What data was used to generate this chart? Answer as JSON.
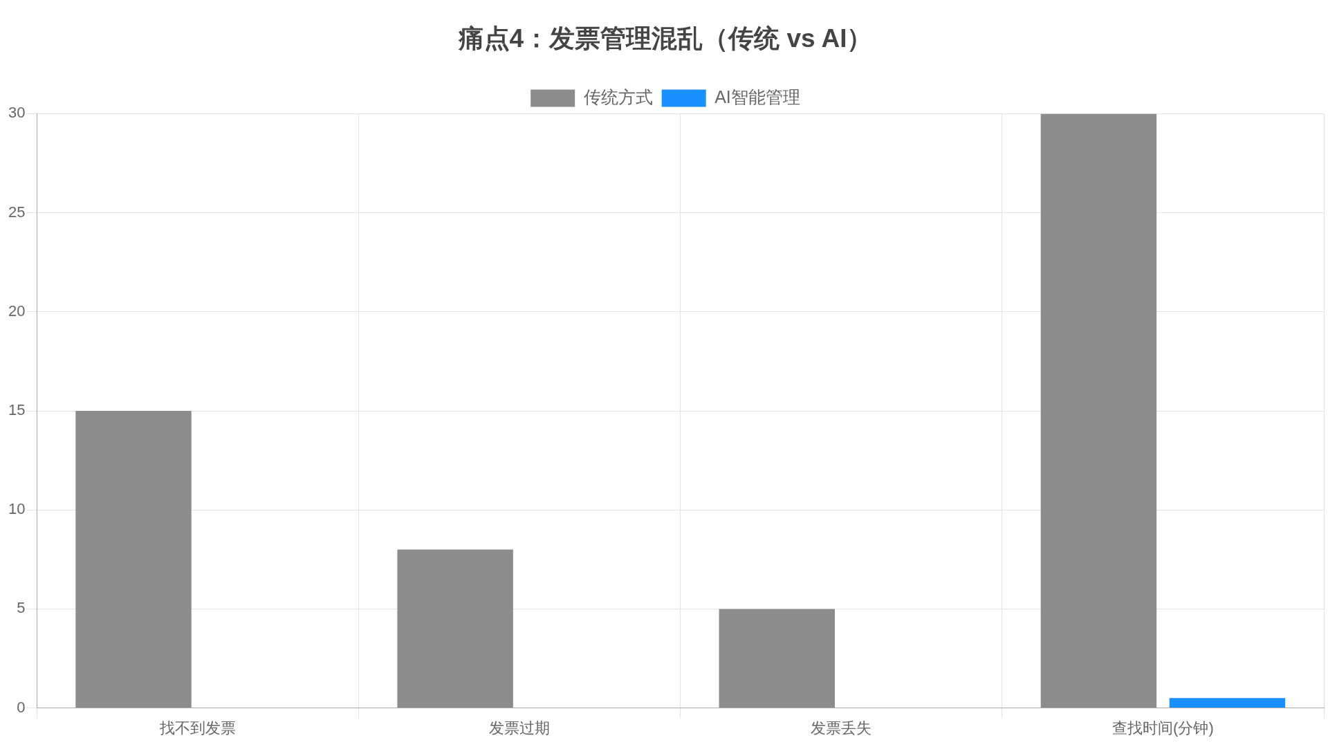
{
  "chart_data": {
    "type": "bar",
    "title": "痛点4：发票管理混乱（传统 vs AI）",
    "categories": [
      "找不到发票",
      "发票过期",
      "发票丢失",
      "查找时间(分钟)"
    ],
    "series": [
      {
        "name": "传统方式",
        "color": "#8c8c8c",
        "values": [
          15,
          8,
          5,
          30
        ]
      },
      {
        "name": "AI智能管理",
        "color": "#1890ff",
        "values": [
          0,
          0,
          0,
          0.5
        ]
      }
    ],
    "ylim": [
      0,
      30
    ],
    "yticks": [
      0,
      5,
      10,
      15,
      20,
      25,
      30
    ],
    "grid": true,
    "legend": "top"
  }
}
